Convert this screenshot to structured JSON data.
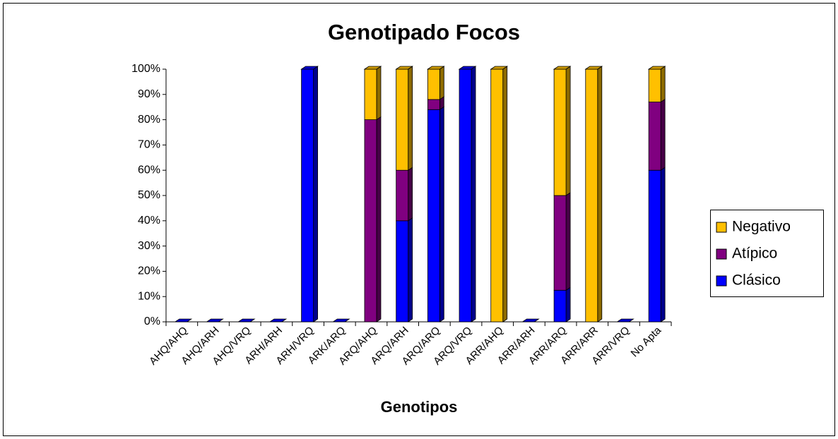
{
  "chart_data": {
    "type": "bar3d_stacked_percent",
    "title": "Genotipado Focos",
    "x_label": "Genotipos",
    "categories": [
      "AHQ/AHQ",
      "AHQ/ARH",
      "AHQ/VRQ",
      "ARH/ARH",
      "ARH/VRQ",
      "ARK/ARQ",
      "ARQ/AHQ",
      "ARQ/ARH",
      "ARQ/ARQ",
      "ARQ/VRQ",
      "ARR/AHQ",
      "ARR/ARH",
      "ARR/ARQ",
      "ARR/ARR",
      "ARR/VRQ",
      "No Apta"
    ],
    "series": [
      {
        "name": "Clásico",
        "color": "#0000ff",
        "values": [
          0,
          0,
          0,
          0,
          100,
          0,
          0,
          40,
          84,
          100,
          0,
          0,
          12.5,
          0,
          0,
          60
        ]
      },
      {
        "name": "Atípico",
        "color": "#800080",
        "values": [
          0,
          0,
          0,
          0,
          0,
          0,
          80,
          20,
          4,
          0,
          0,
          0,
          37.5,
          0,
          0,
          27
        ]
      },
      {
        "name": "Negativo",
        "color": "#ffc000",
        "values": [
          0,
          0,
          0,
          0,
          0,
          0,
          20,
          40,
          12,
          0,
          100,
          0,
          50,
          100,
          0,
          13
        ]
      }
    ],
    "ylim": [
      0,
      100
    ],
    "yticks": [
      {
        "value": 0,
        "label": "0%"
      },
      {
        "value": 10,
        "label": "10%"
      },
      {
        "value": 20,
        "label": "20%"
      },
      {
        "value": 30,
        "label": "30%"
      },
      {
        "value": 40,
        "label": "40%"
      },
      {
        "value": 50,
        "label": "50%"
      },
      {
        "value": 60,
        "label": "60%"
      },
      {
        "value": 70,
        "label": "70%"
      },
      {
        "value": 80,
        "label": "80%"
      },
      {
        "value": 90,
        "label": "90%"
      },
      {
        "value": 100,
        "label": "100%"
      }
    ],
    "legend": "right"
  }
}
